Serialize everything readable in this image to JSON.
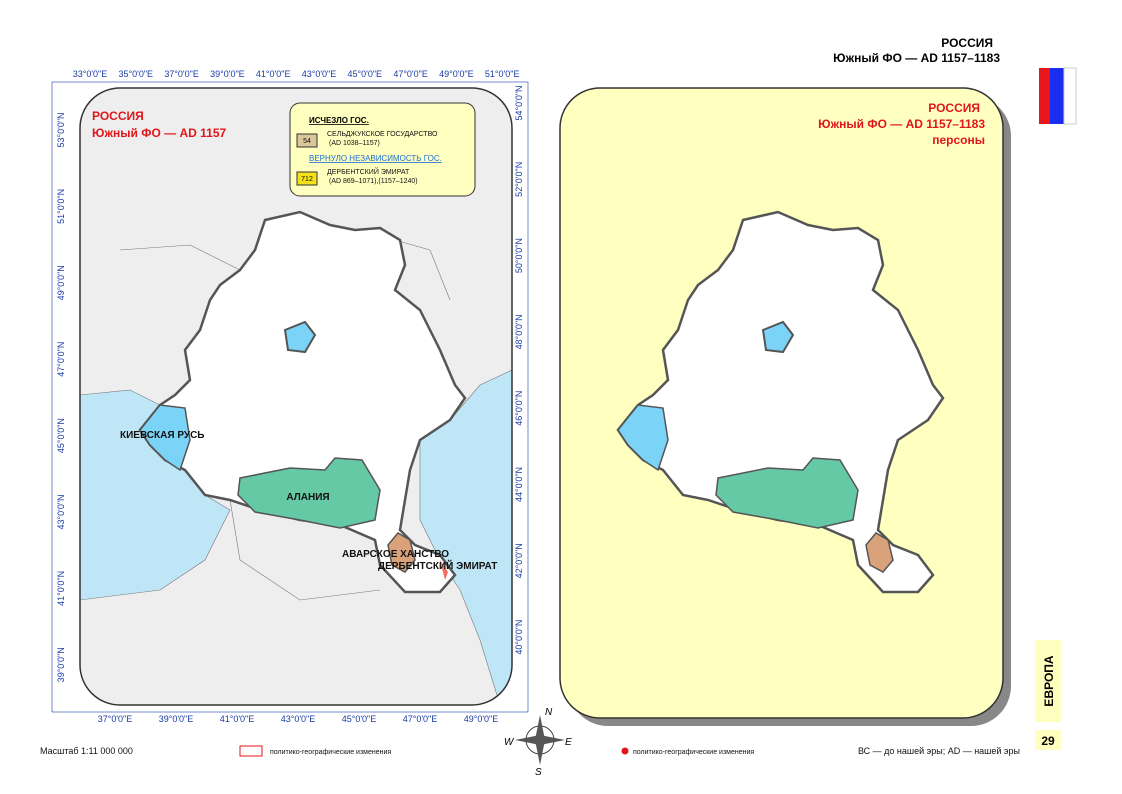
{
  "header": {
    "title": "РОССИЯ",
    "subtitle": "Южный ФО — AD 1157–1183"
  },
  "left_map": {
    "title": "РОССИЯ",
    "subtitle": "Южный ФО — AD 1157",
    "legend": {
      "vanished_heading": "ИСЧЕЗЛО ГОС.",
      "vanished_code": "54",
      "vanished_name": "СЕЛЬДЖУКСКОЕ ГОСУДАРСТВО",
      "vanished_dates": "(AD 1038–1157)",
      "regained_heading": "ВЕРНУЛО НЕЗАВИСИМОСТЬ ГОС.",
      "regained_code": "712",
      "regained_name": "ДЕРБЕНТСКИЙ ЭМИРАТ",
      "regained_dates": "(AD 869–1071),(1157–1240)"
    },
    "lon_top": [
      "33°0'0\"E",
      "35°0'0\"E",
      "37°0'0\"E",
      "39°0'0\"E",
      "41°0'0\"E",
      "43°0'0\"E",
      "45°0'0\"E",
      "47°0'0\"E",
      "49°0'0\"E",
      "51°0'0\"E"
    ],
    "lon_bottom": [
      "37°0'0\"E",
      "39°0'0\"E",
      "41°0'0\"E",
      "43°0'0\"E",
      "45°0'0\"E",
      "47°0'0\"E",
      "49°0'0\"E"
    ],
    "lat_left": [
      "53°0'0\"N",
      "51°0'0\"N",
      "49°0'0\"N",
      "47°0'0\"N",
      "45°0'0\"N",
      "43°0'0\"N",
      "41°0'0\"N",
      "39°0'0\"N"
    ],
    "lat_right": [
      "54°0'0\"N",
      "52°0'0\"N",
      "50°0'0\"N",
      "48°0'0\"N",
      "46°0'0\"N",
      "44°0'0\"N",
      "42°0'0\"N",
      "40°0'0\"N"
    ],
    "labels": {
      "kiev": "КИЕВСКАЯ РУСЬ",
      "alania": "АЛАНИЯ",
      "avar": "АВАРСКОЕ ХАНСТВО",
      "derbent": "ДЕРБЕНТСКИЙ ЭМИРАТ"
    }
  },
  "right_map": {
    "title": "РОССИЯ",
    "subtitle": "Южный ФО — AD 1157–1183",
    "note": "персоны"
  },
  "compass": {
    "n": "N",
    "e": "E",
    "s": "S",
    "w": "W"
  },
  "side": {
    "section": "ЕВРОПА",
    "page": "29"
  },
  "footer": {
    "scale": "Масштаб 1:11 000 000",
    "changes_left": "политико-географические изменения",
    "changes_right": "политико-географические изменения",
    "era": "ВС — до нашей эры; AD — нашей эры"
  }
}
